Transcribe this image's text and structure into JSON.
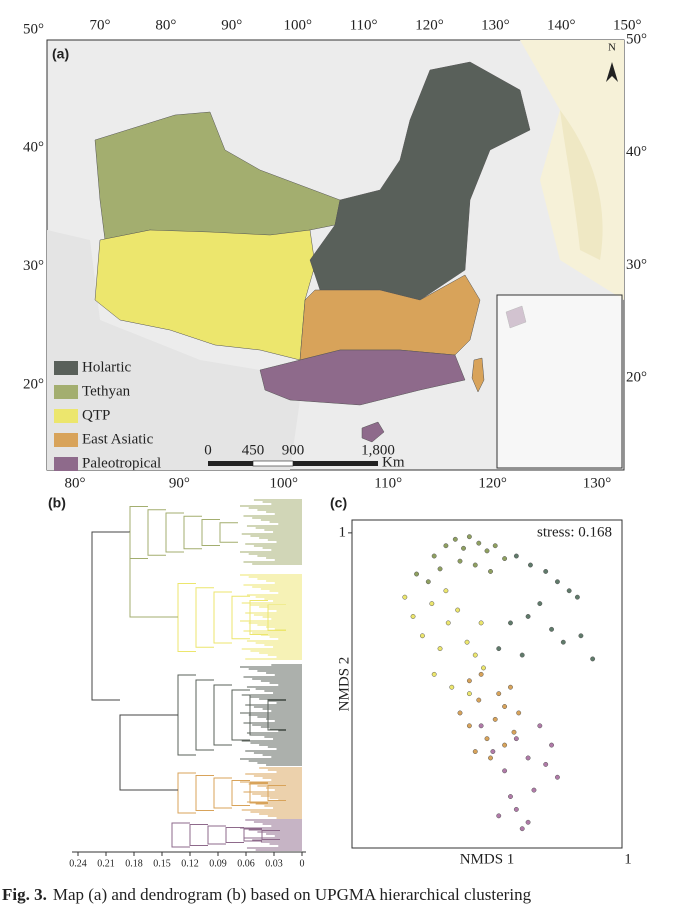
{
  "panel_labels": {
    "a": "(a)",
    "b": "(b)",
    "c": "(c)"
  },
  "map": {
    "top_ticks": [
      {
        "value": 70,
        "label": "70°"
      },
      {
        "value": 80,
        "label": "80°"
      },
      {
        "value": 90,
        "label": "90°"
      },
      {
        "value": 100,
        "label": "100°"
      },
      {
        "value": 110,
        "label": "110°"
      },
      {
        "value": 120,
        "label": "120°"
      },
      {
        "value": 130,
        "label": "130°"
      },
      {
        "value": 140,
        "label": "140°"
      },
      {
        "value": 150,
        "label": "150°"
      }
    ],
    "left_ticks": [
      {
        "value": 50,
        "label": "50°"
      },
      {
        "value": 40,
        "label": "40°"
      },
      {
        "value": 30,
        "label": "30°"
      },
      {
        "value": 20,
        "label": "20°"
      }
    ],
    "right_ticks": [
      {
        "value": 50,
        "label": "50°"
      },
      {
        "value": 40,
        "label": "40°"
      },
      {
        "value": 30,
        "label": "30°"
      },
      {
        "value": 20,
        "label": "20°"
      }
    ],
    "bottom_ticks": [
      {
        "value": 80,
        "label": "80°"
      },
      {
        "value": 90,
        "label": "90°"
      },
      {
        "value": 100,
        "label": "100°"
      },
      {
        "value": 110,
        "label": "110°"
      },
      {
        "value": 120,
        "label": "120°"
      },
      {
        "value": 130,
        "label": "130°"
      }
    ],
    "north": "N",
    "legend": [
      {
        "label": "Holartic",
        "color": "#59605a"
      },
      {
        "label": "Tethyan",
        "color": "#a3ae6f"
      },
      {
        "label": "QTP",
        "color": "#ece66d"
      },
      {
        "label": "East Asiatic",
        "color": "#d8a35a"
      },
      {
        "label": "Paleotropical",
        "color": "#8e6a8b"
      }
    ],
    "scale_bar": {
      "labels": [
        "0",
        "450",
        "900",
        "1,800"
      ],
      "unit": "Km"
    }
  },
  "dendrogram": {
    "xlim": [
      0.24,
      0
    ],
    "xticks": [
      0.24,
      0.21,
      0.18,
      0.15,
      0.12,
      0.09,
      0.06,
      0.03,
      0
    ]
  },
  "chart_data": {
    "type": "scatter",
    "xlabel": "NMDS 1",
    "ylabel": "NMDS 2",
    "annotation": "stress: 0.168",
    "xlim": [
      -1.3,
      1.0
    ],
    "ylim": [
      -1.45,
      1.1
    ],
    "xticks": [
      1
    ],
    "yticks": [
      1
    ],
    "series": [
      {
        "color": "#8fa060",
        "x": [
          -0.75,
          -0.6,
          -0.5,
          -0.42,
          -0.35,
          -0.3,
          -0.22,
          -0.15,
          -0.08,
          0.0,
          -0.55,
          -0.38,
          -0.25,
          -0.12,
          -0.65
        ],
        "y": [
          0.68,
          0.82,
          0.9,
          0.95,
          0.88,
          0.97,
          0.92,
          0.86,
          0.9,
          0.8,
          0.72,
          0.78,
          0.75,
          0.7,
          0.62
        ]
      },
      {
        "color": "#5f7a6a",
        "x": [
          0.1,
          0.22,
          0.35,
          0.45,
          0.55,
          0.62,
          0.3,
          0.2,
          0.05,
          0.4,
          0.5,
          -0.05,
          0.15,
          0.65,
          0.75
        ],
        "y": [
          0.82,
          0.75,
          0.7,
          0.62,
          0.55,
          0.5,
          0.45,
          0.35,
          0.3,
          0.25,
          0.15,
          0.1,
          0.05,
          0.2,
          0.02
        ]
      },
      {
        "color": "#ece66d",
        "x": [
          -0.85,
          -0.78,
          -0.7,
          -0.62,
          -0.55,
          -0.48,
          -0.4,
          -0.32,
          -0.25,
          -0.18,
          -0.6,
          -0.45,
          -0.3,
          -0.5,
          -0.2
        ],
        "y": [
          0.5,
          0.35,
          0.2,
          0.45,
          0.1,
          0.3,
          0.4,
          0.15,
          0.05,
          -0.05,
          -0.1,
          -0.2,
          -0.25,
          0.55,
          0.3
        ]
      },
      {
        "color": "#d8a35a",
        "x": [
          -0.38,
          -0.3,
          -0.22,
          -0.15,
          -0.08,
          0.0,
          0.08,
          -0.25,
          -0.12,
          0.05,
          -0.2,
          -0.05,
          0.12,
          -0.3,
          0.0
        ],
        "y": [
          -0.4,
          -0.5,
          -0.3,
          -0.6,
          -0.45,
          -0.35,
          -0.55,
          -0.7,
          -0.75,
          -0.2,
          -0.1,
          -0.25,
          -0.4,
          -0.15,
          -0.65
        ]
      },
      {
        "color": "#b07aa8",
        "x": [
          -0.2,
          -0.1,
          0.0,
          0.1,
          0.2,
          0.3,
          0.4,
          0.45,
          0.05,
          -0.05,
          0.15,
          0.25,
          0.35,
          0.1,
          0.2
        ],
        "y": [
          -0.5,
          -0.7,
          -0.85,
          -0.6,
          -0.75,
          -0.5,
          -0.65,
          -0.9,
          -1.05,
          -1.2,
          -1.3,
          -1.0,
          -0.8,
          -1.15,
          -1.25
        ]
      }
    ]
  },
  "caption": {
    "label": "Fig. 3.",
    "text": "Map (a) and dendrogram (b) based on UPGMA hierarchical clustering"
  }
}
